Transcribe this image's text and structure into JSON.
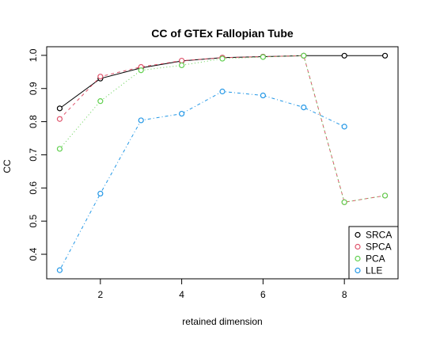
{
  "chart_data": {
    "type": "line",
    "title": "CC of GTEx Fallopian Tube",
    "xlabel": "retained dimension",
    "ylabel": "CC",
    "xlim": [
      0.68,
      9.32
    ],
    "ylim": [
      0.326,
      1.026
    ],
    "x_ticks": [
      2,
      4,
      6,
      8
    ],
    "y_ticks": [
      0.4,
      0.5,
      0.6,
      0.7,
      0.8,
      0.9,
      1.0
    ],
    "y_tick_labels": [
      "0.4",
      "0.5",
      "0.6",
      "0.7",
      "0.8",
      "0.9",
      "1.0"
    ],
    "grid": false,
    "legend_position": "bottom-right",
    "series": [
      {
        "name": "SRCA",
        "color": "#000000",
        "line_style": "solid",
        "x": [
          1,
          2,
          3,
          4,
          5,
          6,
          7,
          8,
          9
        ],
        "y": [
          0.84,
          0.93,
          0.962,
          0.983,
          0.993,
          0.996,
          0.999,
          0.999,
          0.999
        ]
      },
      {
        "name": "SPCA",
        "color": "#DF536B",
        "line_style": "dashed",
        "x": [
          1,
          2,
          3,
          4,
          5,
          6,
          7,
          8,
          9
        ],
        "y": [
          0.808,
          0.936,
          0.965,
          0.984,
          0.993,
          0.996,
          0.999,
          0.557,
          0.577
        ]
      },
      {
        "name": "PCA",
        "color": "#61D04F",
        "line_style": "dotted",
        "x": [
          1,
          2,
          3,
          4,
          5,
          6,
          7,
          8,
          9
        ],
        "y": [
          0.718,
          0.862,
          0.955,
          0.97,
          0.99,
          0.995,
          0.999,
          0.557,
          0.577
        ]
      },
      {
        "name": "LLE",
        "color": "#2297E6",
        "line_style": "dotdash",
        "x": [
          1,
          2,
          3,
          4,
          5,
          6,
          7,
          8
        ],
        "y": [
          0.352,
          0.583,
          0.804,
          0.824,
          0.891,
          0.879,
          0.843,
          0.785
        ]
      }
    ]
  }
}
